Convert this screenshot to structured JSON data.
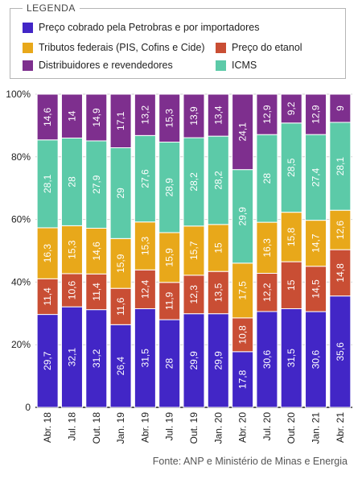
{
  "legend": {
    "title": "LEGENDA",
    "items": [
      {
        "label": "Preço cobrado pela Petrobras e por importadores",
        "color": "#4226c6"
      },
      {
        "label": "Tributos federais (PIS, Cofins e Cide)",
        "color": "#e8a81a"
      },
      {
        "label": "Preço do etanol",
        "color": "#c94e34"
      },
      {
        "label": "Distribuidores e revendedores",
        "color": "#7e2f8e"
      },
      {
        "label": "ICMS",
        "color": "#5ccaa8"
      }
    ]
  },
  "source": "Fonte: ANP e Ministério de Minas e Energia",
  "chart_data": {
    "type": "bar",
    "stacked": true,
    "percent": true,
    "categories": [
      "Abr. 18",
      "Jul. 18",
      "Out. 18",
      "Jan. 19",
      "Abr. 19",
      "Jul. 19",
      "Out. 19",
      "Jan. 20",
      "Abr. 20",
      "Jul. 20",
      "Out. 20",
      "Jan. 21",
      "Abr. 21"
    ],
    "yticks": [
      "0",
      "20%",
      "40%",
      "60%",
      "80%",
      "100%"
    ],
    "ylim": [
      0,
      100
    ],
    "grid": true,
    "series": [
      {
        "name": "Preço cobrado pela Petrobras e por importadores",
        "color": "#4226c6",
        "values": [
          29.7,
          32.1,
          31.2,
          26.4,
          31.5,
          28,
          29.9,
          29.9,
          17.8,
          30.6,
          31.5,
          30.6,
          35.6
        ],
        "labels": [
          "29,7",
          "32,1",
          "31,2",
          "26,4",
          "31,5",
          "28",
          "29,9",
          "29,9",
          "17,8",
          "30,6",
          "31,5",
          "30,6",
          "35,6"
        ]
      },
      {
        "name": "Preço do etanol",
        "color": "#c94e34",
        "values": [
          11.4,
          10.6,
          11.4,
          11.6,
          12.4,
          11.9,
          12.3,
          13.5,
          10.8,
          12.2,
          15,
          14.5,
          14.8
        ],
        "labels": [
          "11,4",
          "10,6",
          "11,4",
          "11,6",
          "12,4",
          "11,9",
          "12,3",
          "13,5",
          "10,8",
          "12,2",
          "15",
          "14,5",
          "14,8"
        ]
      },
      {
        "name": "Tributos federais (PIS, Cofins e Cide)",
        "color": "#e8a81a",
        "values": [
          16.3,
          15.3,
          14.6,
          15.9,
          15.3,
          15.9,
          15.7,
          15,
          17.5,
          16.3,
          15.8,
          14.7,
          12.6
        ],
        "labels": [
          "16,3",
          "15,3",
          "14,6",
          "15,9",
          "15,3",
          "15,9",
          "15,7",
          "15",
          "17,5",
          "16,3",
          "15,8",
          "14,7",
          "12,6"
        ]
      },
      {
        "name": "ICMS",
        "color": "#5ccaa8",
        "values": [
          28.1,
          28,
          27.9,
          29,
          27.6,
          28.9,
          28.2,
          28.2,
          29.9,
          28,
          28.5,
          27.4,
          28.1
        ],
        "labels": [
          "28,1",
          "28",
          "27,9",
          "29",
          "27,6",
          "28,9",
          "28,2",
          "28,2",
          "29,9",
          "28",
          "28,5",
          "27,4",
          "28,1"
        ]
      },
      {
        "name": "Distribuidores e revendedores",
        "color": "#7e2f8e",
        "values": [
          14.6,
          14,
          14.9,
          17.1,
          13.2,
          15.3,
          13.9,
          13.4,
          24.1,
          12.9,
          9.2,
          12.9,
          9
        ],
        "labels": [
          "14,6",
          "14",
          "14,9",
          "17,1",
          "13,2",
          "15,3",
          "13,9",
          "13,4",
          "24,1",
          "12,9",
          "9,2",
          "12,9",
          "9"
        ]
      }
    ]
  }
}
